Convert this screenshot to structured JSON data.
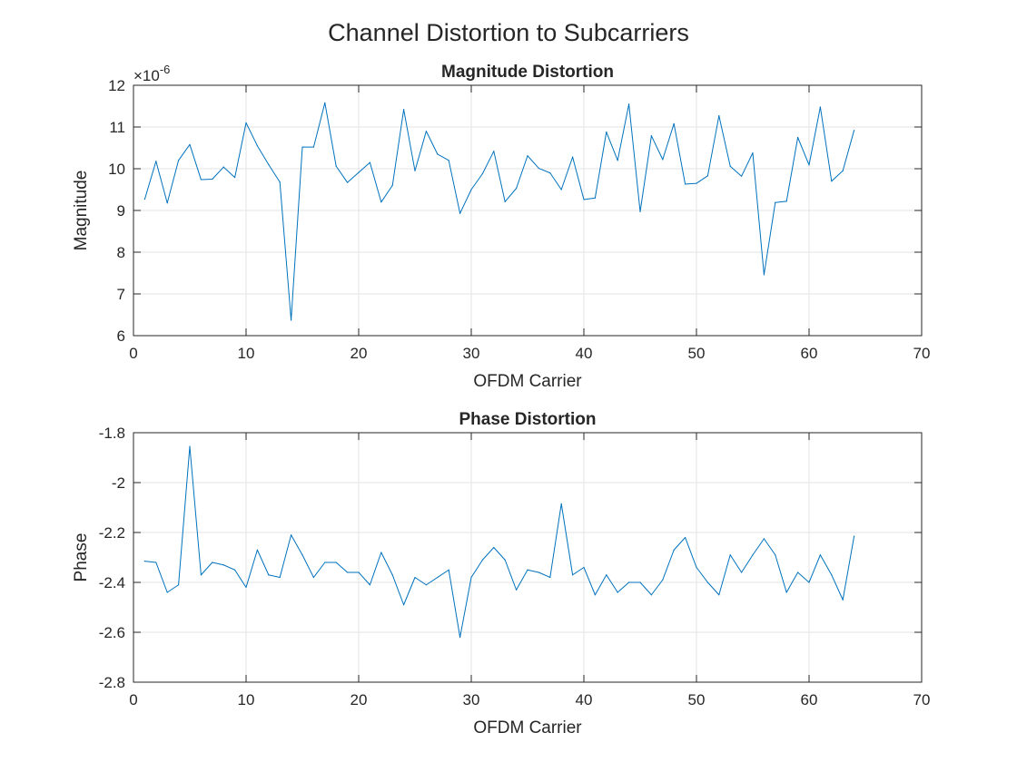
{
  "figure": {
    "title": "Channel Distortion to Subcarriers"
  },
  "chart_data": [
    {
      "type": "line",
      "title": "Magnitude Distortion",
      "xlabel": "OFDM Carrier",
      "ylabel": "Magnitude",
      "exponent_label": "×10",
      "exponent_power": "-6",
      "xlim": [
        0,
        70
      ],
      "ylim": [
        6,
        12
      ],
      "xticks": [
        0,
        10,
        20,
        30,
        40,
        50,
        60,
        70
      ],
      "yticks": [
        6,
        7,
        8,
        9,
        10,
        11,
        12
      ],
      "grid": true,
      "line_color": "#0072BD",
      "series": [
        {
          "x": [
            1,
            2,
            3,
            4,
            5,
            6,
            7,
            8,
            9,
            10,
            11,
            12,
            13,
            14,
            15,
            16,
            17,
            18,
            19,
            20,
            21,
            22,
            23,
            24,
            25,
            26,
            27,
            28,
            29,
            30,
            31,
            32,
            33,
            34,
            35,
            36,
            37,
            38,
            39,
            40,
            41,
            42,
            43,
            44,
            45,
            46,
            47,
            48,
            49,
            50,
            51,
            52,
            53,
            54,
            55,
            56,
            57,
            58,
            59,
            60,
            61,
            62,
            63,
            64
          ],
          "values": [
            9.27,
            10.18,
            9.18,
            10.2,
            10.58,
            9.74,
            9.75,
            10.04,
            9.79,
            11.1,
            10.55,
            10.1,
            9.68,
            6.37,
            10.52,
            10.52,
            11.58,
            10.06,
            9.67,
            9.91,
            10.15,
            9.2,
            9.6,
            11.42,
            9.95,
            10.9,
            10.35,
            10.2,
            8.93,
            9.5,
            9.88,
            10.42,
            9.21,
            9.53,
            10.31,
            10.01,
            9.9,
            9.5,
            10.28,
            9.26,
            9.3,
            10.88,
            10.2,
            11.55,
            8.97,
            10.79,
            10.22,
            11.08,
            9.63,
            9.65,
            9.83,
            11.27,
            10.06,
            9.82,
            10.38,
            7.46,
            9.19,
            9.22,
            10.75,
            10.09,
            11.48,
            9.7,
            9.95,
            10.92
          ]
        }
      ]
    },
    {
      "type": "line",
      "title": "Phase Distortion",
      "xlabel": "OFDM Carrier",
      "ylabel": "Phase",
      "xlim": [
        0,
        70
      ],
      "ylim": [
        -2.8,
        -1.8
      ],
      "xticks": [
        0,
        10,
        20,
        30,
        40,
        50,
        60,
        70
      ],
      "yticks": [
        -2.8,
        -2.6,
        -2.4,
        -2.2,
        -2,
        -1.8
      ],
      "grid": true,
      "line_color": "#0072BD",
      "series": [
        {
          "x": [
            1,
            2,
            3,
            4,
            5,
            6,
            7,
            8,
            9,
            10,
            11,
            12,
            13,
            14,
            15,
            16,
            17,
            18,
            19,
            20,
            21,
            22,
            23,
            24,
            25,
            26,
            27,
            28,
            29,
            30,
            31,
            32,
            33,
            34,
            35,
            36,
            37,
            38,
            39,
            40,
            41,
            42,
            43,
            44,
            45,
            46,
            47,
            48,
            49,
            50,
            51,
            52,
            53,
            54,
            55,
            56,
            57,
            58,
            59,
            60,
            61,
            62,
            63,
            64
          ],
          "values": [
            -2.315,
            -2.32,
            -2.44,
            -2.41,
            -1.855,
            -2.37,
            -2.32,
            -2.33,
            -2.35,
            -2.42,
            -2.27,
            -2.37,
            -2.38,
            -2.21,
            -2.29,
            -2.38,
            -2.32,
            -2.32,
            -2.36,
            -2.36,
            -2.41,
            -2.28,
            -2.37,
            -2.49,
            -2.38,
            -2.41,
            -2.38,
            -2.35,
            -2.62,
            -2.38,
            -2.31,
            -2.26,
            -2.31,
            -2.43,
            -2.35,
            -2.36,
            -2.38,
            -2.085,
            -2.37,
            -2.34,
            -2.45,
            -2.37,
            -2.44,
            -2.4,
            -2.4,
            -2.45,
            -2.39,
            -2.27,
            -2.22,
            -2.34,
            -2.4,
            -2.45,
            -2.29,
            -2.36,
            -2.29,
            -2.225,
            -2.29,
            -2.44,
            -2.36,
            -2.4,
            -2.29,
            -2.37,
            -2.47,
            -2.215
          ]
        }
      ]
    }
  ]
}
